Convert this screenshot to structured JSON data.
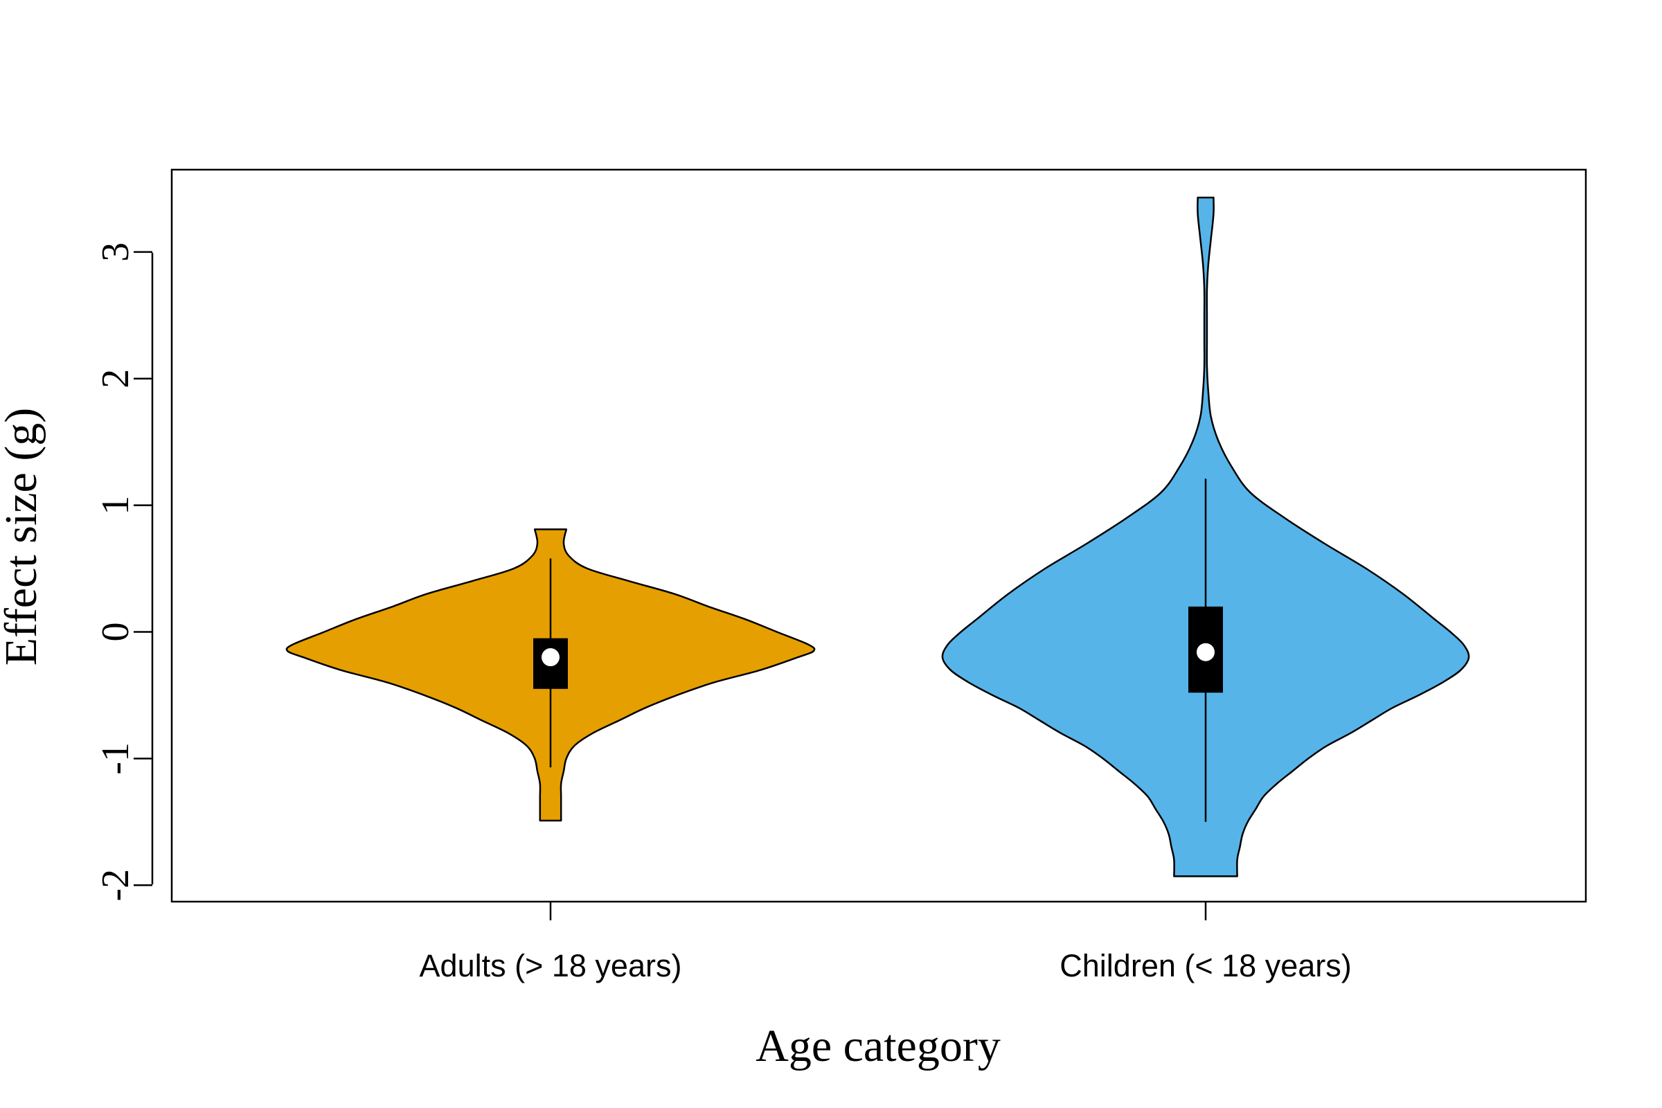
{
  "chart_data": {
    "type": "violin",
    "title": "",
    "xlabel": "Age category",
    "ylabel": "Effect size (g)",
    "ylim": [
      -2.13,
      3.65
    ],
    "yticks": [
      -2,
      -1,
      0,
      1,
      2,
      3
    ],
    "ytick_labels": [
      "-2",
      "-1",
      "0",
      "1",
      "2",
      "3"
    ],
    "grid": false,
    "categories": [
      "Adults (> 18 years)",
      "Children (< 18 years)"
    ],
    "series": [
      {
        "category": "Adults (> 18 years)",
        "color": "#E69F00",
        "min": -1.49,
        "max": 0.81,
        "q1": -0.45,
        "median": -0.2,
        "q3": -0.05,
        "whisker_low": -1.07,
        "whisker_high": 0.58,
        "density": [
          [
            0.81,
            0.06
          ],
          [
            0.7,
            0.05
          ],
          [
            0.6,
            0.07
          ],
          [
            0.5,
            0.14
          ],
          [
            0.4,
            0.3
          ],
          [
            0.3,
            0.47
          ],
          [
            0.2,
            0.6
          ],
          [
            0.1,
            0.74
          ],
          [
            0.0,
            0.86
          ],
          [
            -0.1,
            0.98
          ],
          [
            -0.15,
            1.0
          ],
          [
            -0.2,
            0.94
          ],
          [
            -0.3,
            0.8
          ],
          [
            -0.4,
            0.62
          ],
          [
            -0.5,
            0.48
          ],
          [
            -0.6,
            0.36
          ],
          [
            -0.7,
            0.26
          ],
          [
            -0.8,
            0.16
          ],
          [
            -0.9,
            0.09
          ],
          [
            -1.0,
            0.06
          ],
          [
            -1.1,
            0.05
          ],
          [
            -1.2,
            0.04
          ],
          [
            -1.3,
            0.04
          ],
          [
            -1.4,
            0.04
          ],
          [
            -1.49,
            0.04
          ]
        ]
      },
      {
        "category": "Children (< 18 years)",
        "color": "#56B4E9",
        "min": -1.93,
        "max": 3.43,
        "q1": -0.48,
        "median": -0.16,
        "q3": 0.2,
        "whisker_low": -1.5,
        "whisker_high": 1.21,
        "density": [
          [
            3.43,
            0.03
          ],
          [
            3.3,
            0.03
          ],
          [
            3.1,
            0.02
          ],
          [
            2.9,
            0.01
          ],
          [
            2.7,
            0.005
          ],
          [
            2.5,
            0.005
          ],
          [
            2.3,
            0.005
          ],
          [
            2.1,
            0.005
          ],
          [
            1.9,
            0.01
          ],
          [
            1.7,
            0.02
          ],
          [
            1.5,
            0.05
          ],
          [
            1.3,
            0.1
          ],
          [
            1.1,
            0.17
          ],
          [
            0.9,
            0.3
          ],
          [
            0.7,
            0.45
          ],
          [
            0.5,
            0.61
          ],
          [
            0.3,
            0.75
          ],
          [
            0.1,
            0.87
          ],
          [
            0.0,
            0.93
          ],
          [
            -0.1,
            0.98
          ],
          [
            -0.2,
            1.0
          ],
          [
            -0.3,
            0.97
          ],
          [
            -0.4,
            0.9
          ],
          [
            -0.5,
            0.81
          ],
          [
            -0.6,
            0.71
          ],
          [
            -0.7,
            0.63
          ],
          [
            -0.8,
            0.55
          ],
          [
            -0.9,
            0.46
          ],
          [
            -1.0,
            0.39
          ],
          [
            -1.1,
            0.33
          ],
          [
            -1.2,
            0.27
          ],
          [
            -1.3,
            0.22
          ],
          [
            -1.4,
            0.19
          ],
          [
            -1.5,
            0.16
          ],
          [
            -1.6,
            0.14
          ],
          [
            -1.7,
            0.13
          ],
          [
            -1.8,
            0.12
          ],
          [
            -1.93,
            0.12
          ]
        ]
      }
    ]
  }
}
